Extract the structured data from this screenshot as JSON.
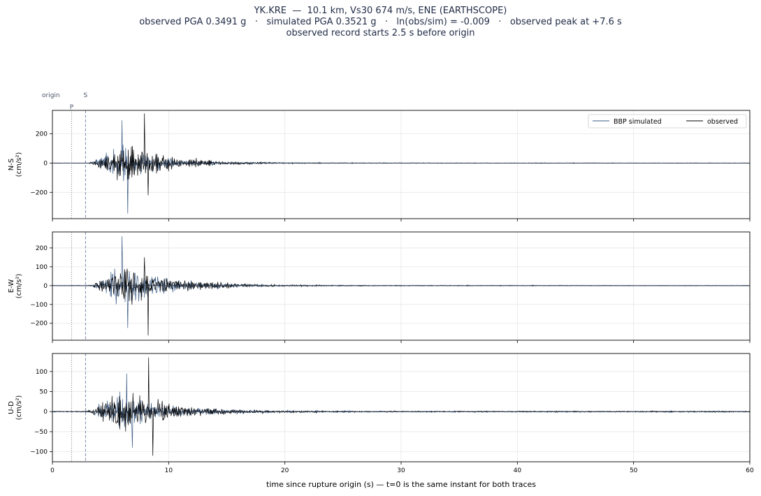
{
  "title": {
    "line1": "YK.KRE  —  10.1 km, Vs30 674 m/s, ENE (EARTHSCOPE)",
    "line2": "observed PGA 0.3491 g   ·   simulated PGA 0.3521 g   ·   ln(obs/sim) = -0.009   ·   observed peak at +7.6 s",
    "line3": "observed record starts 2.5 s before origin"
  },
  "phase_labels": {
    "origin": "origin",
    "P": "P",
    "S": "S"
  },
  "xlabel": "time since rupture origin (s)   —   t=0 is the same instant for both traces",
  "colors": {
    "simulated": "#3b5b85",
    "observed": "#000000",
    "grid": "#e6e6e6",
    "p_line": "#8a8a8a",
    "s_line": "#7a88a8"
  },
  "legend": [
    {
      "label": "BBP simulated",
      "color": "#3b5b85"
    },
    {
      "label": "observed",
      "color": "#000000"
    }
  ],
  "chart_data": [
    {
      "type": "line",
      "component": "N-S",
      "ylabel": "N-S\n(cm/s²)",
      "xlim": [
        0,
        60
      ],
      "ylim": [
        -380,
        360
      ],
      "xticks": [
        0,
        10,
        20,
        30,
        40,
        50,
        60
      ],
      "yticks": [
        -200,
        0,
        200
      ],
      "p_arrival": 1.65,
      "s_arrival": 2.85,
      "legend": true,
      "envelope": {
        "simulated_peak_pos": 292,
        "simulated_peak_neg": -345,
        "observed_peak_pos": 340,
        "observed_peak_neg": -220,
        "peak_time": 7.6
      },
      "series": [
        {
          "name": "BBP simulated",
          "amp": 120,
          "onset": 3.0,
          "peak": 5.8,
          "decay": 3.2
        },
        {
          "name": "observed",
          "amp": 110,
          "onset": 2.8,
          "peak": 6.5,
          "decay": 3.4
        }
      ]
    },
    {
      "type": "line",
      "component": "E-W",
      "ylabel": "E-W\n(cm/s²)",
      "xlim": [
        0,
        60
      ],
      "ylim": [
        -290,
        285
      ],
      "xticks": [
        0,
        10,
        20,
        30,
        40,
        50,
        60
      ],
      "yticks": [
        -200,
        -100,
        0,
        100,
        200
      ],
      "p_arrival": 1.65,
      "s_arrival": 2.85,
      "legend": false,
      "envelope": {
        "simulated_peak_pos": 262,
        "simulated_peak_neg": -225,
        "observed_peak_pos": 150,
        "observed_peak_neg": -265,
        "peak_time": 7.6
      },
      "series": [
        {
          "name": "BBP simulated",
          "amp": 95,
          "onset": 3.0,
          "peak": 6.2,
          "decay": 3.8
        },
        {
          "name": "observed",
          "amp": 85,
          "onset": 2.8,
          "peak": 6.4,
          "decay": 4.2
        }
      ]
    },
    {
      "type": "line",
      "component": "U-D",
      "ylabel": "U-D\n(cm/s²)",
      "xlim": [
        0,
        60
      ],
      "ylim": [
        -125,
        145
      ],
      "xticks": [
        0,
        10,
        20,
        30,
        40,
        50,
        60
      ],
      "yticks": [
        -100,
        -50,
        0,
        50,
        100
      ],
      "p_arrival": 1.65,
      "s_arrival": 2.85,
      "legend": false,
      "envelope": {
        "simulated_peak_pos": 95,
        "simulated_peak_neg": -90,
        "observed_peak_pos": 135,
        "observed_peak_neg": -110,
        "peak_time": 8.0
      },
      "series": [
        {
          "name": "BBP simulated",
          "amp": 40,
          "onset": 2.6,
          "peak": 6.0,
          "decay": 4.0
        },
        {
          "name": "observed",
          "amp": 45,
          "onset": 2.6,
          "peak": 6.2,
          "decay": 4.2
        }
      ]
    }
  ]
}
